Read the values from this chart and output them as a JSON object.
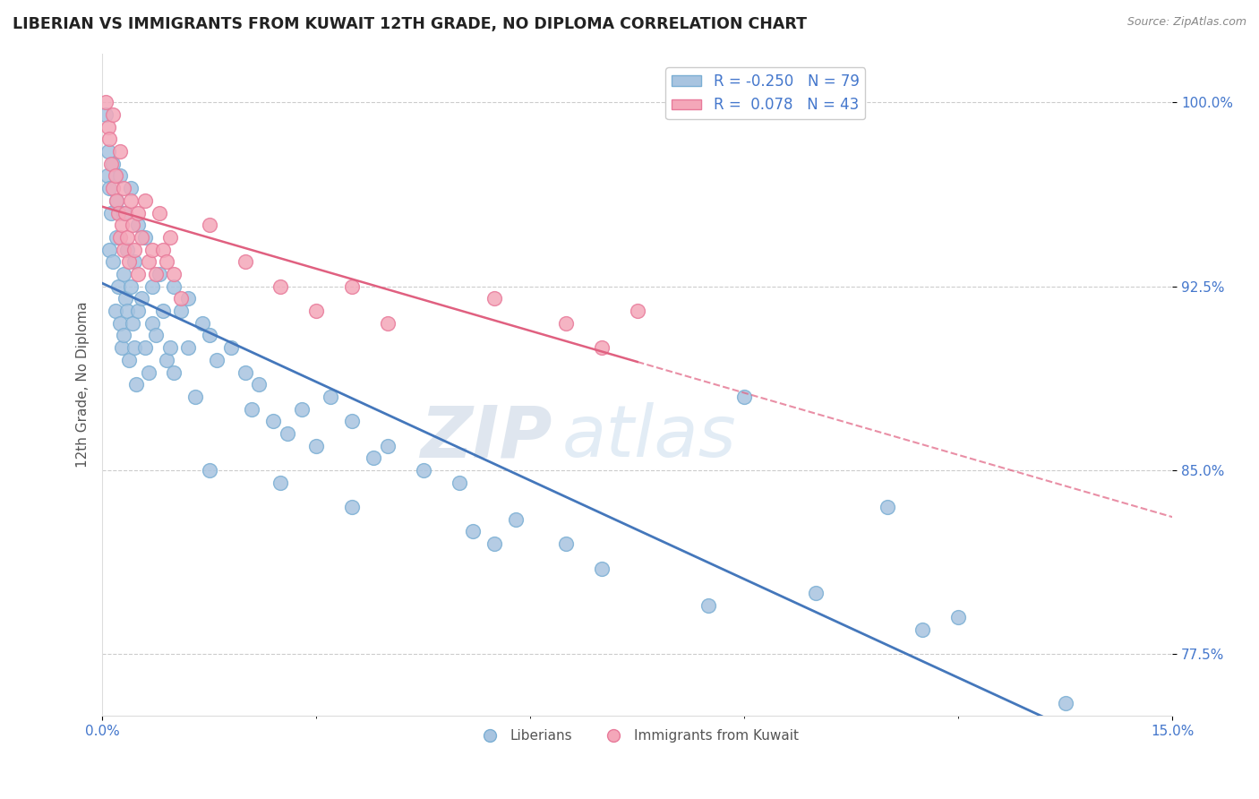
{
  "title": "LIBERIAN VS IMMIGRANTS FROM KUWAIT 12TH GRADE, NO DIPLOMA CORRELATION CHART",
  "source": "Source: ZipAtlas.com",
  "ylabel": "12th Grade, No Diploma",
  "xlim": [
    0.0,
    15.0
  ],
  "ylim": [
    75.0,
    102.0
  ],
  "yticks": [
    77.5,
    85.0,
    92.5,
    100.0
  ],
  "xticks": [
    0.0,
    15.0
  ],
  "xtick_labels": [
    "0.0%",
    "15.0%"
  ],
  "ytick_labels": [
    "77.5%",
    "85.0%",
    "92.5%",
    "100.0%"
  ],
  "blue_R": -0.25,
  "blue_N": 79,
  "pink_R": 0.078,
  "pink_N": 43,
  "blue_color": "#a8c4e0",
  "pink_color": "#f4a7b9",
  "blue_edge": "#7bafd4",
  "pink_edge": "#e87a9a",
  "trend_blue": "#4477bb",
  "trend_pink": "#e06080",
  "watermark_zip": "ZIP",
  "watermark_atlas": "atlas",
  "background": "#ffffff",
  "blue_scatter_x": [
    0.05,
    0.07,
    0.08,
    0.1,
    0.1,
    0.12,
    0.15,
    0.15,
    0.18,
    0.2,
    0.2,
    0.22,
    0.25,
    0.25,
    0.28,
    0.3,
    0.3,
    0.3,
    0.32,
    0.35,
    0.35,
    0.38,
    0.4,
    0.4,
    0.42,
    0.45,
    0.45,
    0.48,
    0.5,
    0.5,
    0.55,
    0.6,
    0.6,
    0.65,
    0.7,
    0.7,
    0.75,
    0.8,
    0.85,
    0.9,
    0.95,
    1.0,
    1.0,
    1.1,
    1.2,
    1.2,
    1.3,
    1.4,
    1.5,
    1.6,
    1.8,
    2.0,
    2.1,
    2.2,
    2.4,
    2.6,
    2.8,
    3.0,
    3.2,
    3.5,
    3.8,
    4.0,
    4.5,
    5.0,
    5.2,
    5.8,
    6.5,
    7.0,
    8.5,
    9.0,
    10.0,
    11.0,
    11.5,
    12.0,
    13.5,
    1.5,
    2.5,
    3.5,
    5.5
  ],
  "blue_scatter_y": [
    99.5,
    97.0,
    98.0,
    96.5,
    94.0,
    95.5,
    93.5,
    97.5,
    91.5,
    96.0,
    94.5,
    92.5,
    97.0,
    91.0,
    90.0,
    95.5,
    93.0,
    90.5,
    92.0,
    91.5,
    94.0,
    89.5,
    96.5,
    92.5,
    91.0,
    90.0,
    93.5,
    88.5,
    95.0,
    91.5,
    92.0,
    94.5,
    90.0,
    89.0,
    92.5,
    91.0,
    90.5,
    93.0,
    91.5,
    89.5,
    90.0,
    92.5,
    89.0,
    91.5,
    90.0,
    92.0,
    88.0,
    91.0,
    90.5,
    89.5,
    90.0,
    89.0,
    87.5,
    88.5,
    87.0,
    86.5,
    87.5,
    86.0,
    88.0,
    87.0,
    85.5,
    86.0,
    85.0,
    84.5,
    82.5,
    83.0,
    82.0,
    81.0,
    79.5,
    88.0,
    80.0,
    83.5,
    78.5,
    79.0,
    75.5,
    85.0,
    84.5,
    83.5,
    82.0
  ],
  "pink_scatter_x": [
    0.05,
    0.08,
    0.1,
    0.12,
    0.15,
    0.15,
    0.18,
    0.2,
    0.22,
    0.25,
    0.25,
    0.28,
    0.3,
    0.3,
    0.32,
    0.35,
    0.38,
    0.4,
    0.42,
    0.45,
    0.5,
    0.5,
    0.55,
    0.6,
    0.65,
    0.7,
    0.75,
    0.8,
    0.85,
    0.9,
    0.95,
    1.0,
    1.1,
    1.5,
    2.0,
    2.5,
    3.0,
    3.5,
    4.0,
    5.5,
    6.5,
    7.0,
    7.5
  ],
  "pink_scatter_y": [
    100.0,
    99.0,
    98.5,
    97.5,
    99.5,
    96.5,
    97.0,
    96.0,
    95.5,
    98.0,
    94.5,
    95.0,
    96.5,
    94.0,
    95.5,
    94.5,
    93.5,
    96.0,
    95.0,
    94.0,
    95.5,
    93.0,
    94.5,
    96.0,
    93.5,
    94.0,
    93.0,
    95.5,
    94.0,
    93.5,
    94.5,
    93.0,
    92.0,
    95.0,
    93.5,
    92.5,
    91.5,
    92.5,
    91.0,
    92.0,
    91.0,
    90.0,
    91.5
  ]
}
